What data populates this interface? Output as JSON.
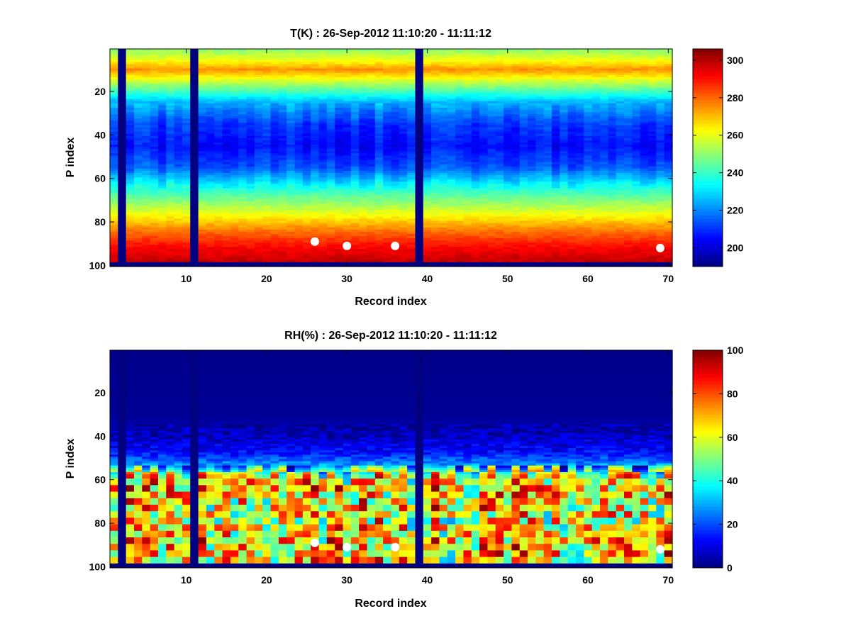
{
  "chart_data": [
    {
      "type": "heatmap",
      "title": "T(K) : 26-Sep-2012 11:10:20 - 11:11:12",
      "xlabel": "Record index",
      "ylabel": "P index",
      "xlim": [
        0.5,
        70.5
      ],
      "ylim": [
        0.5,
        100.5
      ],
      "y_reversed": true,
      "xticks": [
        10,
        20,
        30,
        40,
        50,
        60,
        70
      ],
      "yticks": [
        20,
        40,
        60,
        80,
        100
      ],
      "colorbar": {
        "colormap": "jet",
        "min": 190,
        "max": 306,
        "ticks": [
          200,
          220,
          240,
          260,
          280,
          300
        ]
      },
      "missing_records": [
        2,
        11,
        39
      ],
      "invalid_rows_from": 99,
      "markers": [
        {
          "record": 26,
          "p_index": 89
        },
        {
          "record": 30,
          "p_index": 91
        },
        {
          "record": 36,
          "p_index": 91
        },
        {
          "record": 69,
          "p_index": 92
        }
      ],
      "profile_nodes": {
        "p_index": [
          1,
          6,
          10,
          18,
          25,
          35,
          45,
          55,
          65,
          75,
          85,
          92,
          98
        ],
        "value": [
          250,
          262,
          275,
          248,
          225,
          211,
          205,
          214,
          238,
          258,
          280,
          292,
          298
        ]
      }
    },
    {
      "type": "heatmap",
      "title": "RH(%) : 26-Sep-2012 11:10:20 - 11:11:12",
      "xlabel": "Record index",
      "ylabel": "P index",
      "xlim": [
        0.5,
        70.5
      ],
      "ylim": [
        0.5,
        100.5
      ],
      "y_reversed": true,
      "xticks": [
        10,
        20,
        30,
        40,
        50,
        60,
        70
      ],
      "yticks": [
        20,
        40,
        60,
        80,
        100
      ],
      "colorbar": {
        "colormap": "jet",
        "min": 0,
        "max": 100,
        "ticks": [
          0,
          20,
          40,
          60,
          80,
          100
        ]
      },
      "missing_records": [
        2,
        11,
        39
      ],
      "invalid_rows_from": 99,
      "markers": [
        {
          "record": 26,
          "p_index": 89
        },
        {
          "record": 30,
          "p_index": 91
        },
        {
          "record": 36,
          "p_index": 91
        },
        {
          "record": 69,
          "p_index": 92
        }
      ],
      "profile_nodes": {
        "p_index": [
          1,
          30,
          40,
          48,
          54,
          58,
          65,
          72,
          80,
          88,
          98
        ],
        "value": [
          1,
          2,
          6,
          14,
          30,
          62,
          68,
          64,
          62,
          70,
          66
        ]
      }
    }
  ]
}
